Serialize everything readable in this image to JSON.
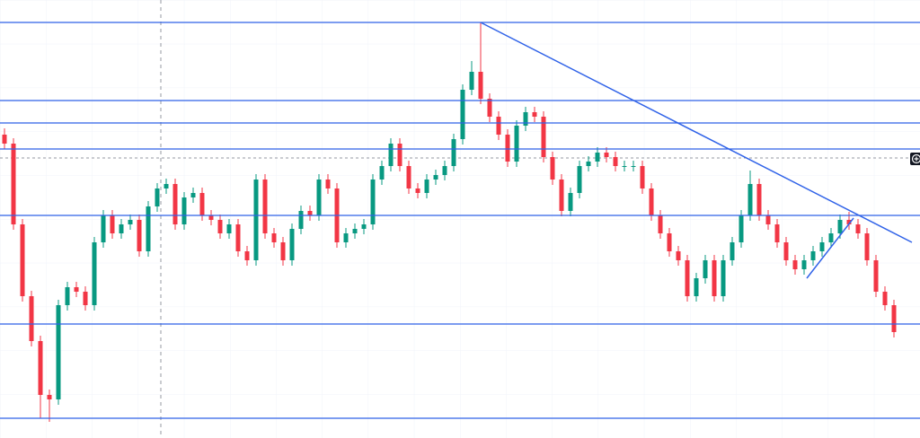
{
  "chart_data": {
    "type": "candlestick",
    "xlim": [
      -0.5,
      101.9
    ],
    "ylim": [
      0,
      488
    ],
    "up_color": "#089981",
    "down_color": "#f23645",
    "line_color": "#2f62e8",
    "open": [
      338,
      328,
      238,
      158,
      108,
      48,
      43,
      148,
      168,
      163,
      148,
      218,
      248,
      228,
      238,
      243,
      208,
      258,
      278,
      283,
      238,
      268,
      273,
      248,
      243,
      228,
      238,
      208,
      198,
      288,
      228,
      218,
      198,
      233,
      253,
      248,
      288,
      278,
      218,
      228,
      233,
      238,
      288,
      303,
      328,
      303,
      278,
      273,
      288,
      293,
      303,
      333,
      388,
      408,
      378,
      358,
      338,
      308,
      348,
      363,
      358,
      313,
      288,
      253,
      273,
      303,
      308,
      318,
      313,
      303,
      303,
      303,
      278,
      248,
      228,
      208,
      198,
      158,
      178,
      198,
      158,
      198,
      218,
      248,
      283,
      248,
      238,
      218,
      198,
      188,
      198,
      208,
      218,
      228,
      243,
      238,
      228,
      198,
      163,
      148
    ],
    "high": [
      345,
      334,
      244,
      164,
      114,
      54,
      154,
      174,
      174,
      169,
      224,
      254,
      254,
      244,
      249,
      249,
      264,
      284,
      289,
      289,
      274,
      279,
      279,
      254,
      249,
      244,
      244,
      214,
      294,
      294,
      234,
      224,
      239,
      259,
      259,
      294,
      294,
      284,
      234,
      239,
      244,
      294,
      309,
      334,
      334,
      309,
      284,
      294,
      299,
      309,
      339,
      394,
      420,
      463,
      384,
      364,
      344,
      354,
      369,
      369,
      364,
      319,
      294,
      279,
      309,
      314,
      324,
      324,
      319,
      309,
      309,
      309,
      284,
      254,
      234,
      214,
      204,
      184,
      204,
      204,
      204,
      224,
      254,
      298,
      289,
      254,
      244,
      224,
      204,
      204,
      214,
      224,
      234,
      249,
      252,
      244,
      234,
      204,
      169,
      154
    ],
    "low": [
      322,
      232,
      152,
      102,
      22,
      18,
      37,
      142,
      157,
      142,
      142,
      212,
      222,
      222,
      232,
      202,
      202,
      252,
      272,
      232,
      232,
      262,
      242,
      237,
      222,
      222,
      202,
      192,
      192,
      222,
      212,
      192,
      192,
      227,
      242,
      242,
      272,
      212,
      212,
      222,
      227,
      232,
      282,
      297,
      297,
      272,
      267,
      267,
      282,
      287,
      297,
      327,
      382,
      372,
      352,
      332,
      302,
      302,
      342,
      352,
      307,
      282,
      247,
      247,
      267,
      297,
      302,
      307,
      297,
      297,
      297,
      272,
      242,
      222,
      202,
      192,
      152,
      152,
      172,
      152,
      152,
      192,
      212,
      242,
      242,
      232,
      212,
      192,
      182,
      182,
      192,
      202,
      212,
      222,
      232,
      222,
      192,
      157,
      142,
      112
    ],
    "close": [
      328,
      238,
      158,
      108,
      48,
      43,
      148,
      168,
      163,
      148,
      218,
      248,
      228,
      238,
      243,
      208,
      258,
      278,
      283,
      238,
      268,
      273,
      248,
      243,
      228,
      238,
      208,
      198,
      288,
      228,
      218,
      198,
      233,
      253,
      248,
      288,
      278,
      218,
      228,
      233,
      238,
      288,
      303,
      328,
      303,
      278,
      273,
      288,
      293,
      303,
      333,
      388,
      408,
      378,
      358,
      338,
      308,
      348,
      363,
      358,
      313,
      288,
      253,
      273,
      303,
      308,
      318,
      313,
      303,
      303,
      303,
      278,
      248,
      228,
      208,
      198,
      158,
      178,
      198,
      158,
      198,
      218,
      248,
      283,
      248,
      238,
      218,
      198,
      188,
      198,
      208,
      218,
      228,
      243,
      238,
      228,
      198,
      163,
      148,
      118
    ],
    "horizontal_lines": [
      463,
      376,
      351,
      322,
      248,
      127,
      22
    ],
    "price_line": 312,
    "crosshair_x": 17.4,
    "trend_lines": [
      {
        "x": [
          53,
          101
        ],
        "y": [
          463,
          218
        ]
      },
      {
        "x": [
          89.3,
          94.5
        ],
        "y": [
          178,
          245
        ]
      }
    ]
  }
}
